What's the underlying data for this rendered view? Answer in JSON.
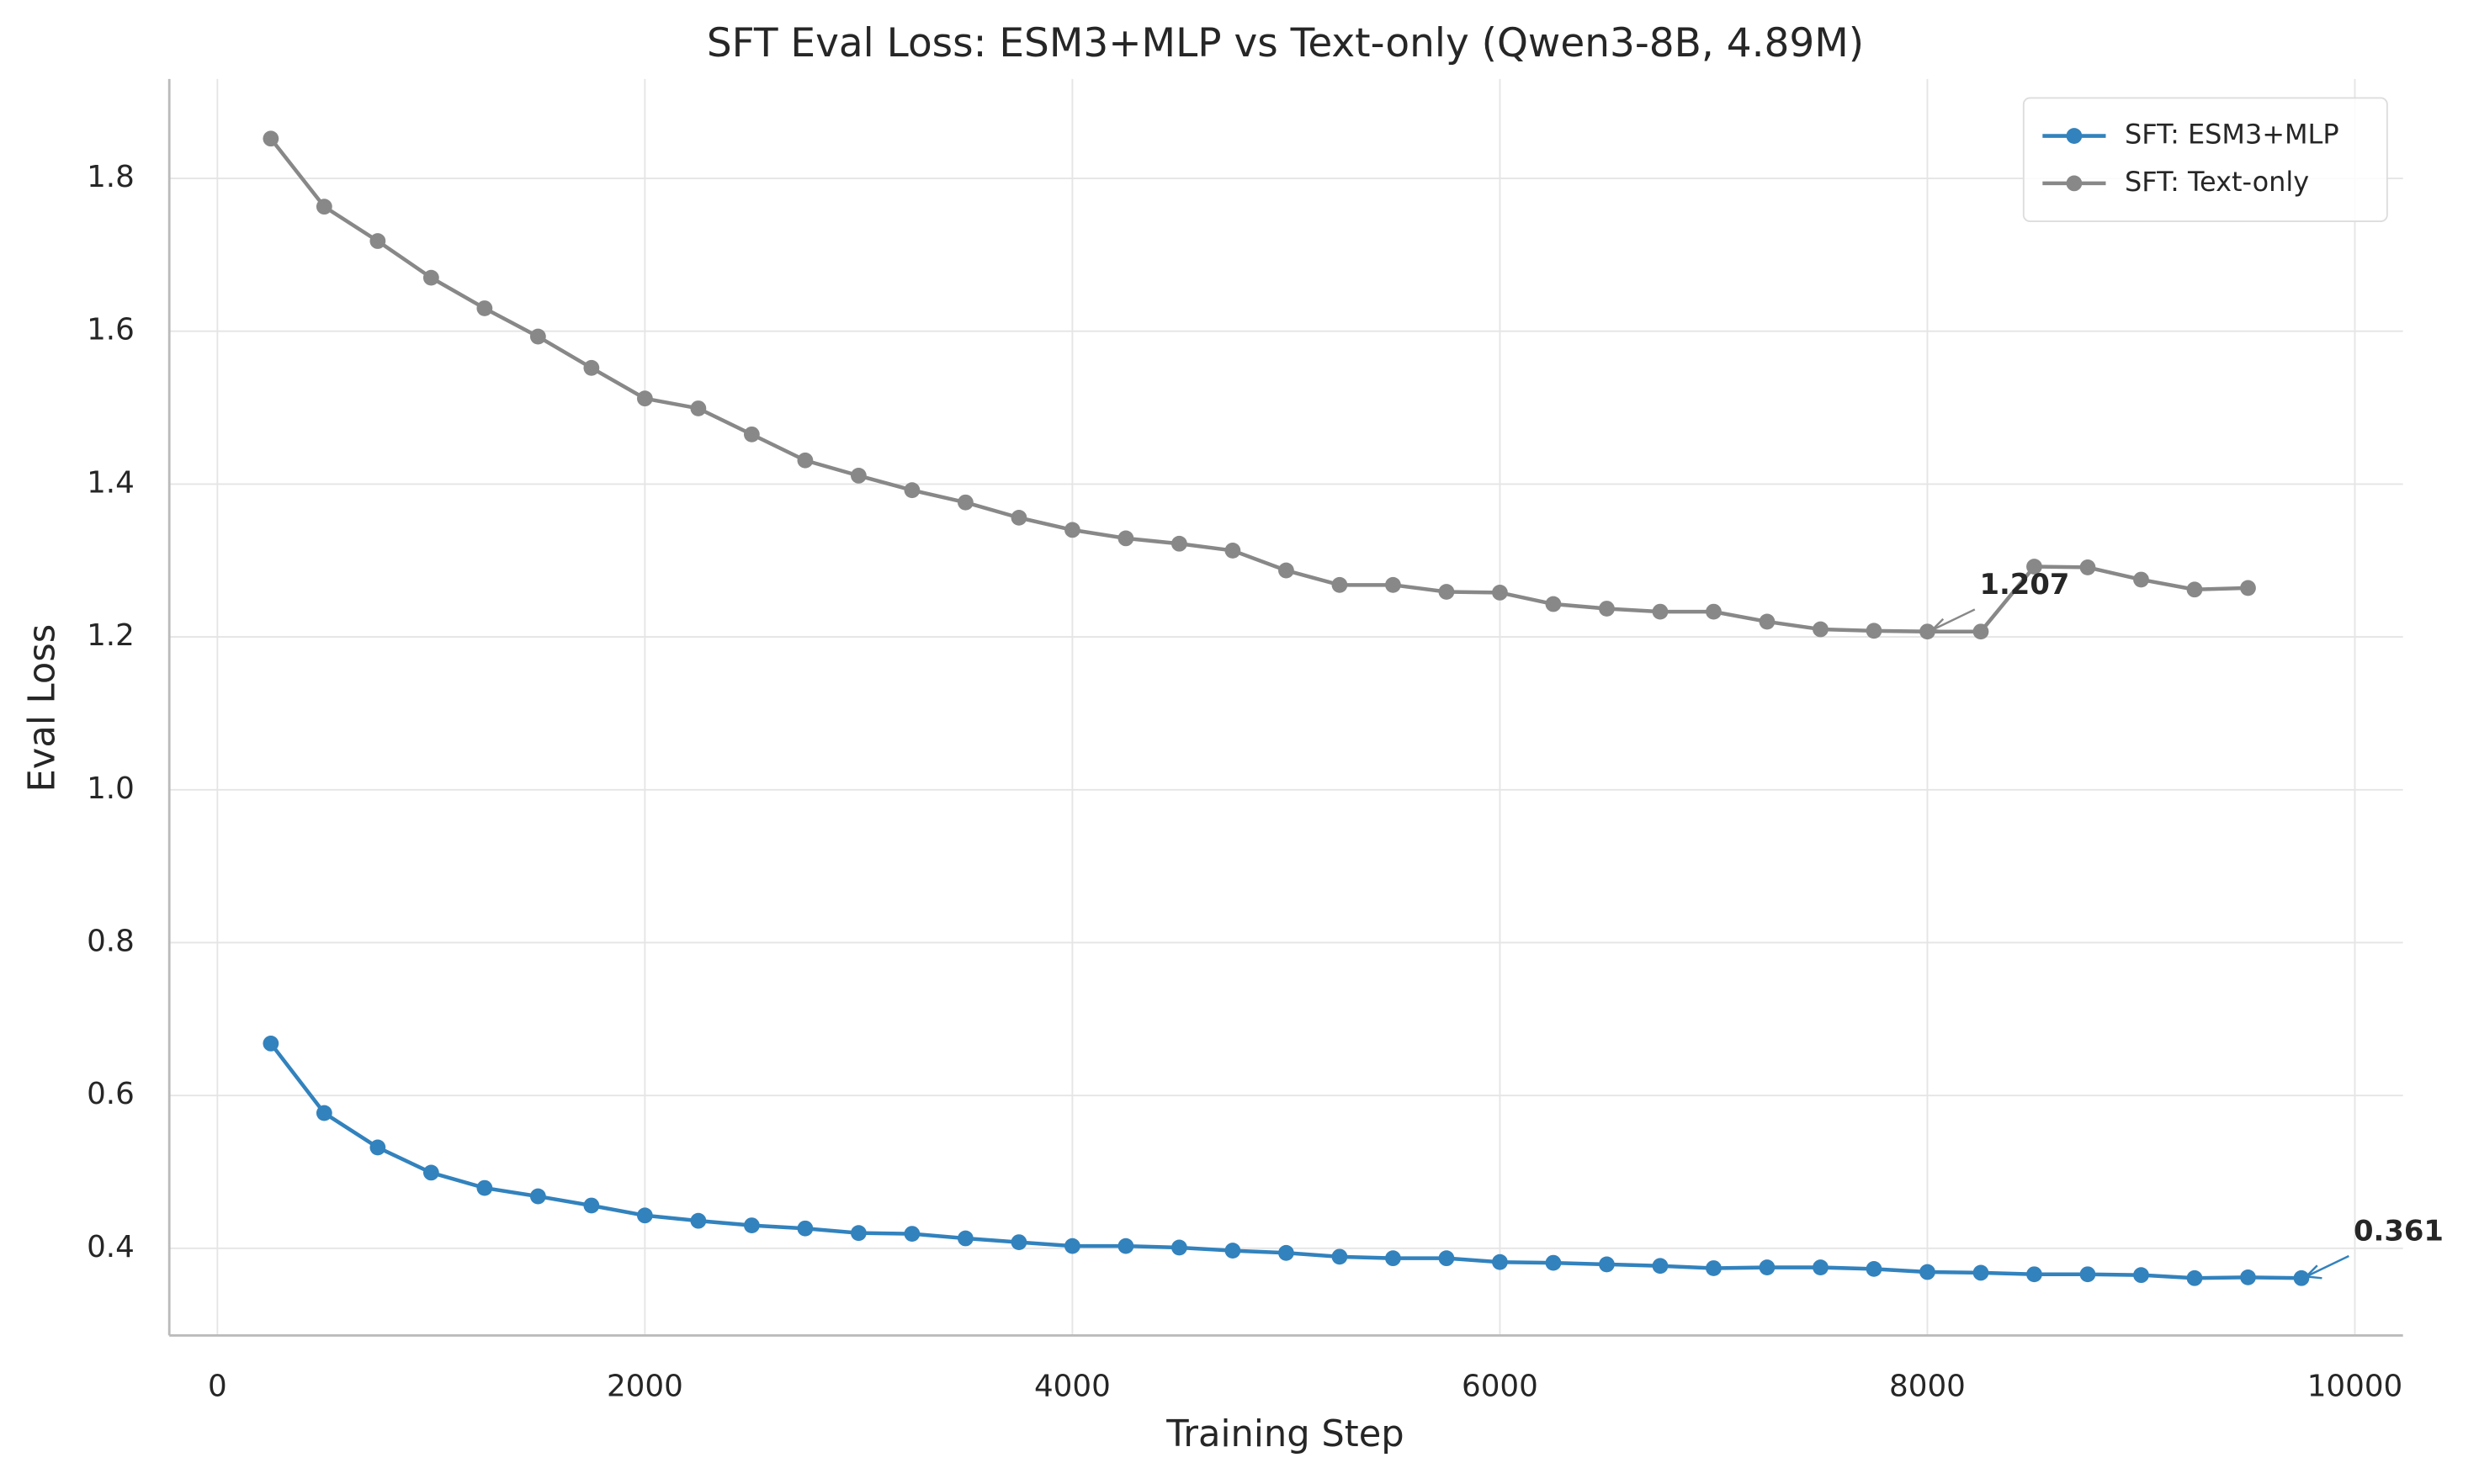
{
  "chart_data": {
    "type": "line",
    "title": "SFT Eval Loss: ESM3+MLP vs Text-only (Qwen3-8B, 4.89M)",
    "x_label": "Training Step",
    "y_label": "Eval Loss",
    "series": [
      {
        "name": "SFT: ESM3+MLP",
        "color": "#3282bd",
        "annotation": "0.361",
        "x": [
          250,
          500,
          750,
          1000,
          1250,
          1500,
          1750,
          2000,
          2250,
          2500,
          2750,
          3000,
          3250,
          3500,
          3750,
          4000,
          4250,
          4500,
          4750,
          5000,
          5250,
          5500,
          5750,
          6000,
          6250,
          6500,
          6750,
          7000,
          7250,
          7500,
          7750,
          8000,
          8250,
          8500,
          8750,
          9000,
          9250,
          9500,
          9750
        ],
        "values": [
          0.668,
          0.577,
          0.532,
          0.499,
          0.479,
          0.468,
          0.456,
          0.443,
          0.436,
          0.43,
          0.426,
          0.42,
          0.419,
          0.413,
          0.408,
          0.403,
          0.403,
          0.401,
          0.397,
          0.394,
          0.389,
          0.387,
          0.387,
          0.382,
          0.381,
          0.379,
          0.377,
          0.374,
          0.375,
          0.375,
          0.373,
          0.369,
          0.368,
          0.366,
          0.366,
          0.365,
          0.361,
          0.362,
          0.361
        ]
      },
      {
        "name": "SFT: Text-only",
        "color": "#888888",
        "annotation": "1.207",
        "x": [
          250,
          500,
          750,
          1000,
          1250,
          1500,
          1750,
          2000,
          2250,
          2500,
          2750,
          3000,
          3250,
          3500,
          3750,
          4000,
          4250,
          4500,
          4750,
          5000,
          5250,
          5500,
          5750,
          6000,
          6250,
          6500,
          6750,
          7000,
          7250,
          7500,
          7750,
          8000,
          8250,
          8500,
          8750,
          9000,
          9250,
          9500
        ],
        "values": [
          1.852,
          1.763,
          1.718,
          1.67,
          1.63,
          1.593,
          1.552,
          1.512,
          1.499,
          1.465,
          1.431,
          1.411,
          1.392,
          1.376,
          1.356,
          1.34,
          1.329,
          1.322,
          1.313,
          1.287,
          1.268,
          1.268,
          1.259,
          1.258,
          1.243,
          1.237,
          1.233,
          1.233,
          1.22,
          1.21,
          1.208,
          1.207,
          1.207,
          1.292,
          1.291,
          1.275,
          1.262,
          1.264
        ]
      }
    ],
    "xlim": [
      -225,
      10225
    ],
    "xticks": [
      0,
      2000,
      4000,
      6000,
      8000,
      10000
    ],
    "ylim": [
      0.286,
      1.93
    ],
    "yticks": [
      {
        "value": 0.4,
        "label": "0.4"
      },
      {
        "value": 0.6,
        "label": "0.6"
      },
      {
        "value": 0.8,
        "label": "0.8"
      },
      {
        "value": 1.0,
        "label": "1.0"
      },
      {
        "value": 1.2,
        "label": "1.2"
      },
      {
        "value": 1.4,
        "label": "1.4"
      },
      {
        "value": 1.6,
        "label": "1.6"
      },
      {
        "value": 1.8,
        "label": "1.8"
      }
    ],
    "grid": true,
    "legend": "upper right"
  }
}
